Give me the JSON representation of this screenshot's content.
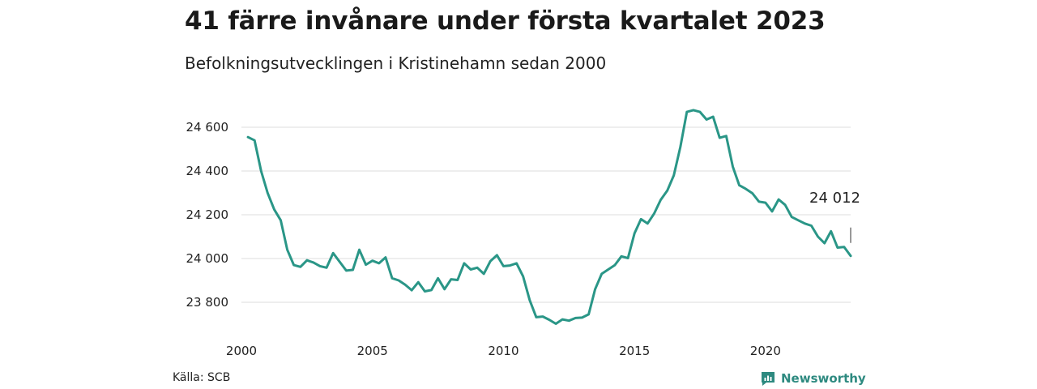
{
  "header": {
    "title": "41 färre invånare under första kvartalet 2023",
    "subtitle": "Befolkningsutvecklingen i Kristinehamn sedan 2000"
  },
  "footer": {
    "source": "Källa: SCB",
    "brand": "Newsworthy",
    "brand_icon": "newsworthy-logo-icon"
  },
  "colors": {
    "line": "#2a9687",
    "grid": "#dcdcdc",
    "brand": "#2e8a80"
  },
  "chart_data": {
    "type": "line",
    "title": "41 färre invånare under första kvartalet 2023",
    "subtitle": "Befolkningsutvecklingen i Kristinehamn sedan 2000",
    "xlabel": "",
    "ylabel": "",
    "x_ticks": [
      "2000",
      "2005",
      "2010",
      "2015",
      "2020"
    ],
    "y_ticks": [
      "23 800",
      "24 000",
      "24 200",
      "24 400",
      "24 600"
    ],
    "xlim": [
      2000,
      2023.25
    ],
    "ylim": [
      23700,
      24700
    ],
    "grid": "horizontal",
    "legend": "none",
    "annotation": {
      "label": "24 012",
      "x": 2023.25,
      "value": 24012
    },
    "series": [
      {
        "x_start": 2000.25,
        "x_step": 0.25,
        "values": [
          24555,
          24540,
          24400,
          24300,
          24225,
          24175,
          24040,
          23970,
          23962,
          23992,
          23982,
          23965,
          23958,
          24025,
          23985,
          23945,
          23948,
          24040,
          23972,
          23990,
          23978,
          24005,
          23910,
          23900,
          23880,
          23855,
          23892,
          23850,
          23856,
          23910,
          23860,
          23905,
          23902,
          23978,
          23950,
          23958,
          23930,
          23988,
          24015,
          23965,
          23968,
          23978,
          23918,
          23810,
          23732,
          23735,
          23720,
          23702,
          23722,
          23716,
          23728,
          23730,
          23745,
          23860,
          23930,
          23950,
          23970,
          24010,
          24002,
          24115,
          24180,
          24160,
          24205,
          24268,
          24310,
          24380,
          24510,
          24670,
          24678,
          24670,
          24635,
          24648,
          24552,
          24560,
          24420,
          24335,
          24318,
          24298,
          24260,
          24255,
          24215,
          24270,
          24245,
          24190,
          24175,
          24160,
          24150,
          24100,
          24070,
          24125,
          24050,
          24053,
          24012
        ]
      }
    ]
  }
}
